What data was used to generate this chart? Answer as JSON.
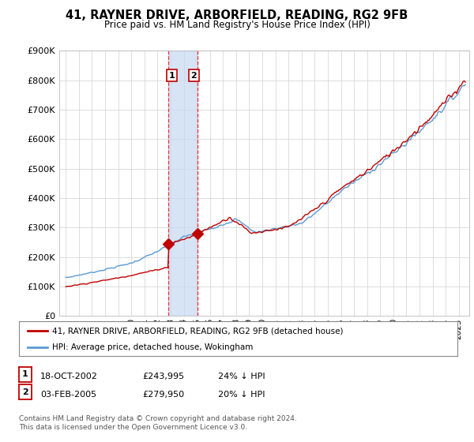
{
  "title": "41, RAYNER DRIVE, ARBORFIELD, READING, RG2 9FB",
  "subtitle": "Price paid vs. HM Land Registry's House Price Index (HPI)",
  "ylim": [
    0,
    900000
  ],
  "yticks": [
    0,
    100000,
    200000,
    300000,
    400000,
    500000,
    600000,
    700000,
    800000,
    900000
  ],
  "sale1_date": 2002.8,
  "sale1_price": 243995,
  "sale1_label": "1",
  "sale2_date": 2005.08,
  "sale2_price": 279950,
  "sale2_label": "2",
  "legend_line1": "41, RAYNER DRIVE, ARBORFIELD, READING, RG2 9FB (detached house)",
  "legend_line2": "HPI: Average price, detached house, Wokingham",
  "table_row1": [
    "1",
    "18-OCT-2002",
    "£243,995",
    "24% ↓ HPI"
  ],
  "table_row2": [
    "2",
    "03-FEB-2005",
    "£279,950",
    "20% ↓ HPI"
  ],
  "footer": "Contains HM Land Registry data © Crown copyright and database right 2024.\nThis data is licensed under the Open Government Licence v3.0.",
  "hpi_color": "#5b9bd5",
  "price_color": "#c00000",
  "shading_color": "#c5d9f1",
  "vline_color": "#ff0000",
  "background_color": "#ffffff",
  "grid_color": "#d0d0d0",
  "xlim_left": 1994.5,
  "xlim_right": 2025.8
}
